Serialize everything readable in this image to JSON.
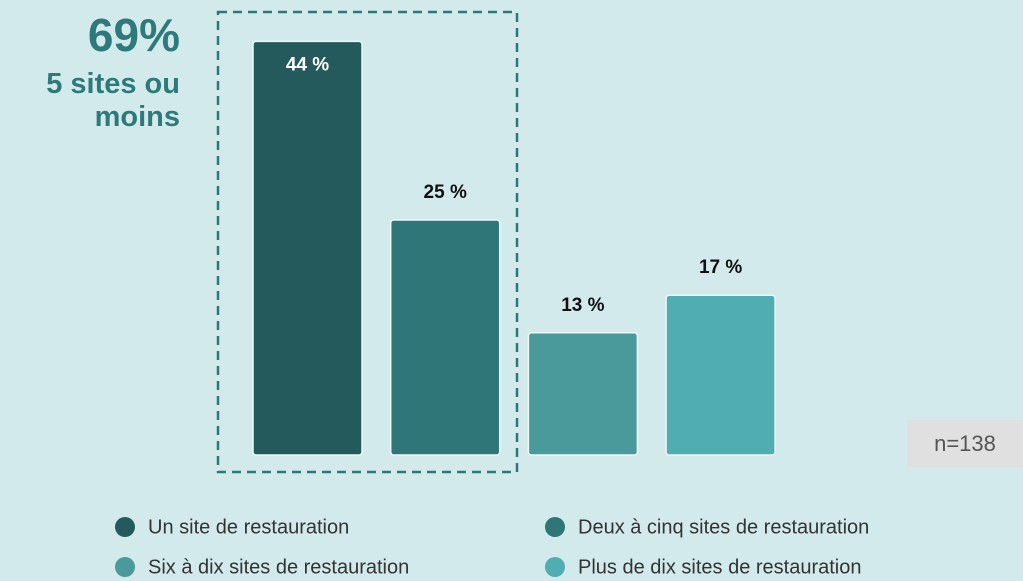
{
  "chart_data": {
    "type": "bar",
    "annotation_value": "69%",
    "annotation_text": "5 sites ou moins",
    "note": "n=138",
    "categories": [
      "Un site de restauration",
      "Deux à cinq sites de restauration",
      "Six à dix sites de restauration",
      "Plus de dix sites de restauration"
    ],
    "values": [
      44,
      25,
      13,
      17
    ],
    "value_labels": [
      "44 %",
      "25 %",
      "13 %",
      "17 %"
    ],
    "colors": [
      "#255a5c",
      "#2e7677",
      "#4a9a9c",
      "#50adb1"
    ]
  }
}
